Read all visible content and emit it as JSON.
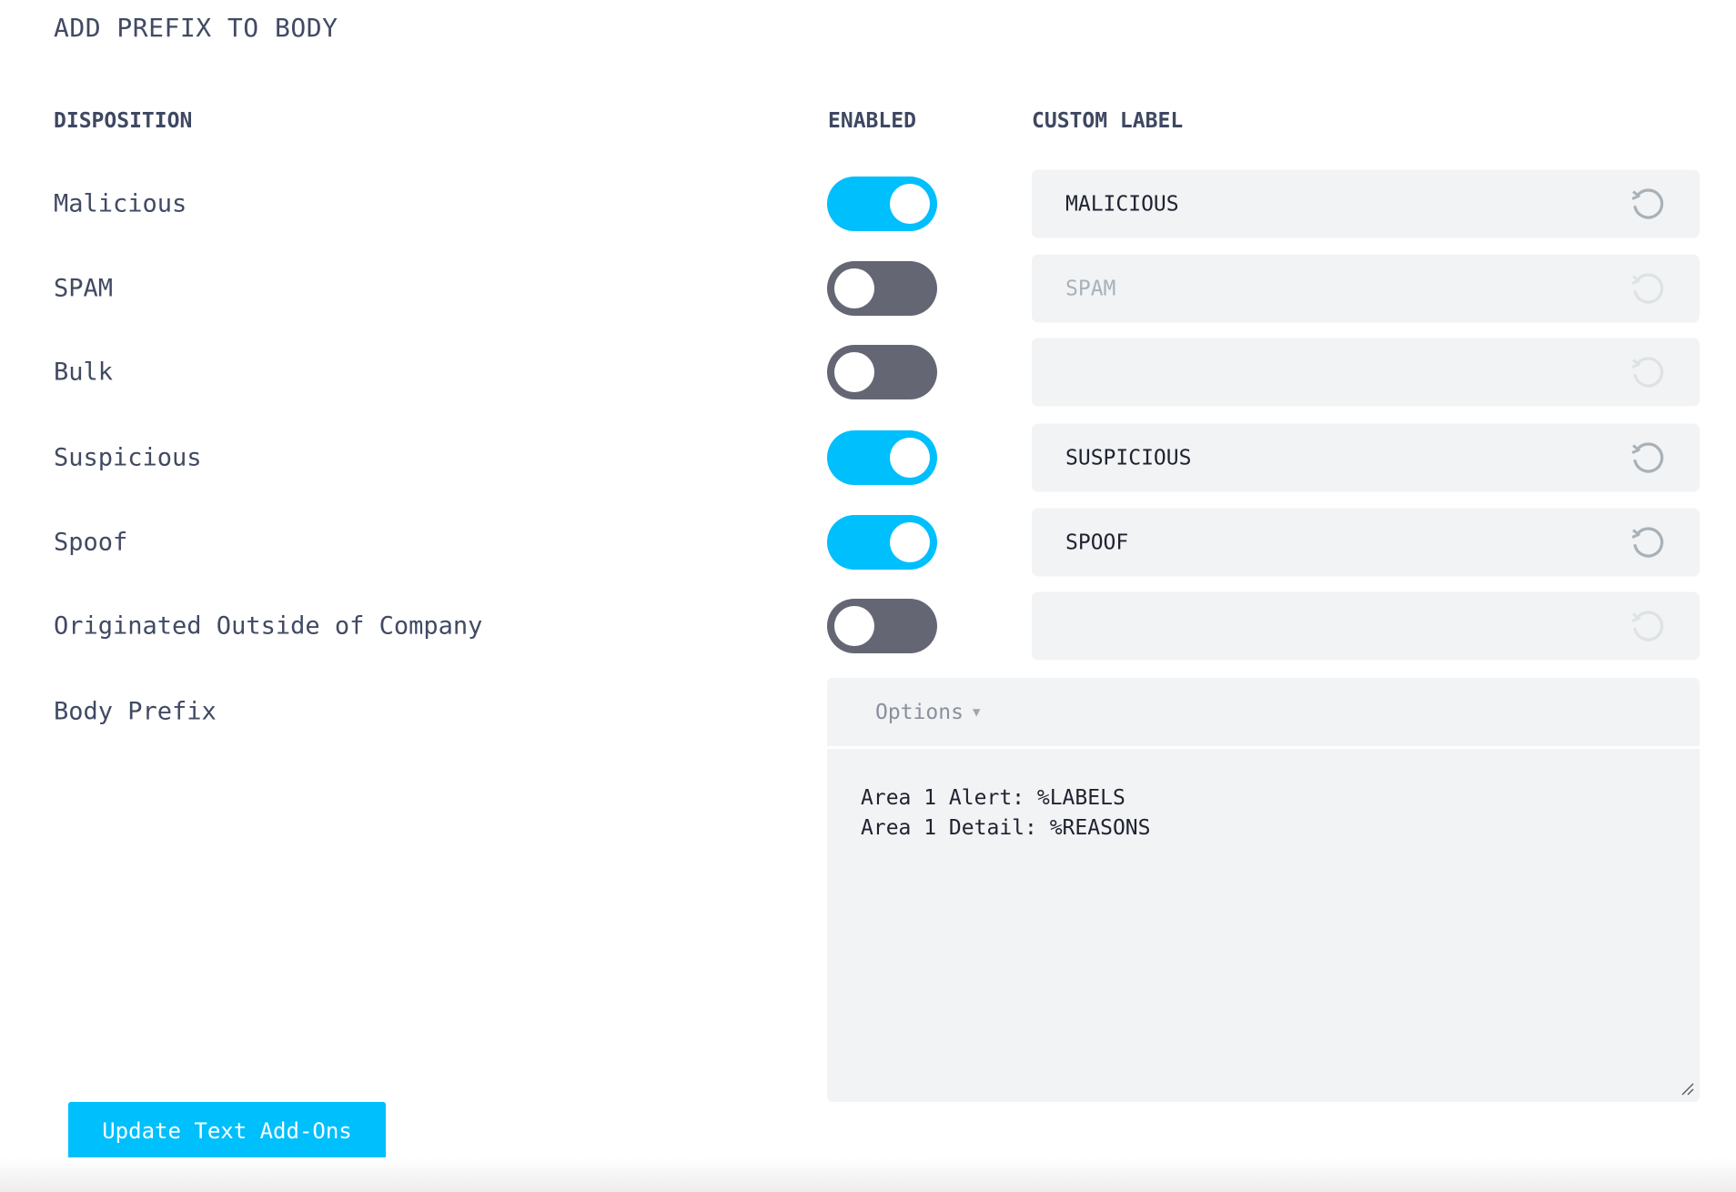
{
  "section_title": "ADD PREFIX TO BODY",
  "columns": {
    "disposition": "DISPOSITION",
    "enabled": "ENABLED",
    "custom_label": "CUSTOM LABEL"
  },
  "rows": [
    {
      "label": "Malicious",
      "enabled": true,
      "custom_label": "MALICIOUS"
    },
    {
      "label": "SPAM",
      "enabled": false,
      "custom_label": "SPAM"
    },
    {
      "label": "Bulk",
      "enabled": false,
      "custom_label": ""
    },
    {
      "label": "Suspicious",
      "enabled": true,
      "custom_label": "SUSPICIOUS"
    },
    {
      "label": "Spoof",
      "enabled": true,
      "custom_label": "SPOOF"
    },
    {
      "label": "Originated Outside of Company",
      "enabled": false,
      "custom_label": ""
    }
  ],
  "body_prefix": {
    "label": "Body Prefix",
    "options_label": "Options",
    "value": "Area 1 Alert: %LABELS\nArea 1 Detail: %REASONS"
  },
  "update_button": "Update Text Add-Ons",
  "colors": {
    "toggle_on": "#00bffd",
    "toggle_off": "#646773",
    "field_bg": "#f1f3f4",
    "primary_button": "#00bffd"
  },
  "icons": {
    "reset": "reset-icon",
    "options_caret": "caret-down-icon"
  }
}
